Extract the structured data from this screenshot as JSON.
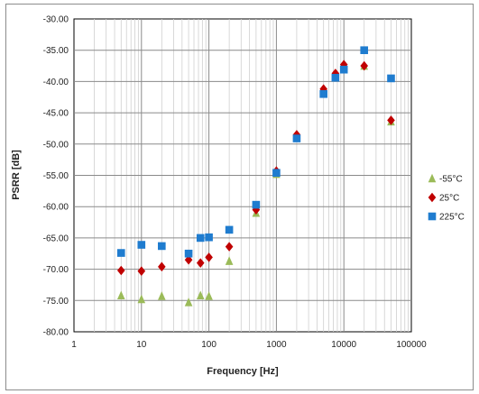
{
  "chart_data": {
    "type": "scatter",
    "title": "",
    "xlabel": "Frequency [Hz]",
    "ylabel": "PSRR [dB]",
    "x_scale": "log",
    "xlim": [
      1,
      100000
    ],
    "ylim": [
      -80,
      -30
    ],
    "x_ticks": [
      "1",
      "10",
      "100",
      "1000",
      "10000",
      "100000"
    ],
    "y_ticks": [
      "-30.00",
      "-35.00",
      "-40.00",
      "-45.00",
      "-50.00",
      "-55.00",
      "-60.00",
      "-65.00",
      "-70.00",
      "-75.00",
      "-80.00"
    ],
    "grid": true,
    "legend_position": "right",
    "series": [
      {
        "name": "-55°C",
        "marker": "triangle",
        "color": "#9bbb59",
        "points": [
          [
            5,
            -74.2
          ],
          [
            10,
            -74.8
          ],
          [
            20,
            -74.3
          ],
          [
            50,
            -75.3
          ],
          [
            75,
            -74.2
          ],
          [
            100,
            -74.3
          ],
          [
            200,
            -68.7
          ],
          [
            500,
            -61.0
          ],
          [
            1000,
            -54.8
          ],
          [
            2000,
            -48.5
          ],
          [
            5000,
            -41.5
          ],
          [
            7500,
            -39.0
          ],
          [
            10000,
            -37.6
          ],
          [
            20000,
            -37.5
          ],
          [
            50000,
            -46.4
          ]
        ]
      },
      {
        "name": "25°C",
        "marker": "diamond",
        "color": "#c00000",
        "points": [
          [
            5,
            -70.2
          ],
          [
            10,
            -70.3
          ],
          [
            20,
            -69.6
          ],
          [
            50,
            -68.5
          ],
          [
            75,
            -69.0
          ],
          [
            100,
            -68.1
          ],
          [
            200,
            -66.4
          ],
          [
            500,
            -60.5
          ],
          [
            1000,
            -54.3
          ],
          [
            2000,
            -48.5
          ],
          [
            5000,
            -41.2
          ],
          [
            7500,
            -38.7
          ],
          [
            10000,
            -37.3
          ],
          [
            20000,
            -37.5
          ],
          [
            50000,
            -46.2
          ]
        ]
      },
      {
        "name": "225°C",
        "marker": "square",
        "color": "#1f7ccf",
        "points": [
          [
            5,
            -67.4
          ],
          [
            10,
            -66.1
          ],
          [
            20,
            -66.3
          ],
          [
            50,
            -67.5
          ],
          [
            75,
            -65.0
          ],
          [
            100,
            -64.9
          ],
          [
            200,
            -63.7
          ],
          [
            500,
            -59.7
          ],
          [
            1000,
            -54.6
          ],
          [
            2000,
            -49.1
          ],
          [
            5000,
            -42.0
          ],
          [
            7500,
            -39.4
          ],
          [
            10000,
            -38.1
          ],
          [
            20000,
            -35.0
          ],
          [
            50000,
            -39.5
          ]
        ]
      }
    ]
  }
}
